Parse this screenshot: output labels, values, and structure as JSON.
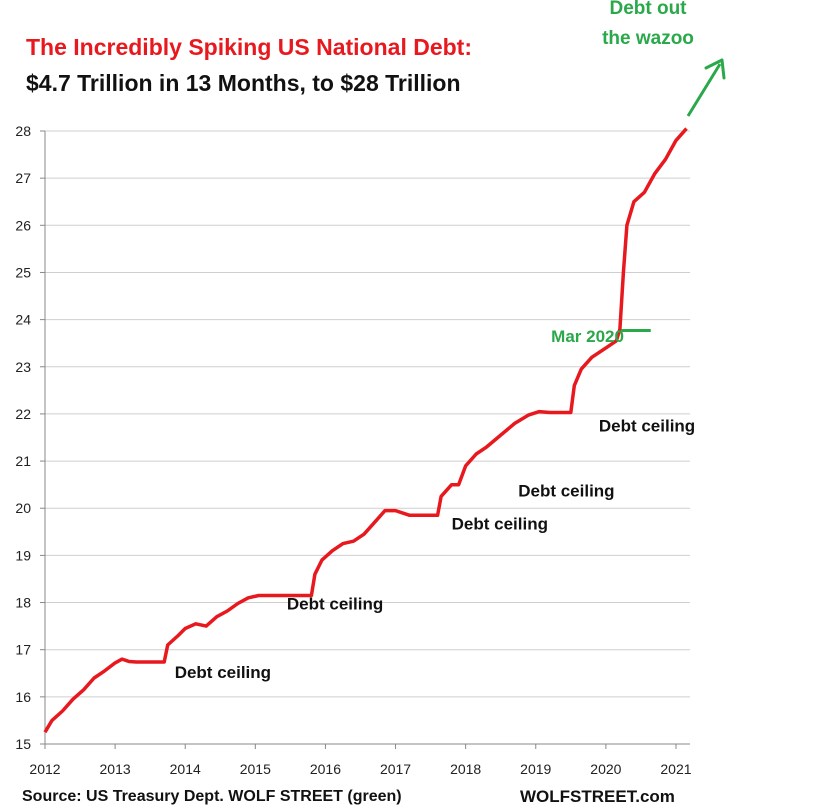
{
  "title_line1": "The Incredibly Spiking US National Debt:",
  "title_line2": "$4.7 Trillion in 13 Months, to $28 Trillion",
  "callout": {
    "line1": "Debt out",
    "line2": "the wazoo",
    "color": "#2aa84a"
  },
  "footer": {
    "source": "Source: US Treasury Dept. WOLF STREET (green)",
    "brand": "WOLFSTREET.com"
  },
  "colors": {
    "line": "#e8191e",
    "annotation": "#2aa84a",
    "grid": "#cfcfcf"
  },
  "chart_data": {
    "type": "line",
    "title": "The Incredibly Spiking US National Debt:",
    "subtitle": "$4.7 Trillion in 13 Months, to $28 Trillion",
    "xlabel": "",
    "ylabel": "",
    "xlim": [
      2012,
      2021.2
    ],
    "ylim": [
      15,
      28
    ],
    "x_ticks": [
      2012,
      2013,
      2014,
      2015,
      2016,
      2017,
      2018,
      2019,
      2020,
      2021
    ],
    "y_ticks": [
      15,
      16,
      17,
      18,
      19,
      20,
      21,
      22,
      23,
      24,
      25,
      26,
      27,
      28
    ],
    "grid": "horizontal",
    "series": [
      {
        "x": [
          2012.0,
          2012.1,
          2012.25,
          2012.4,
          2012.55,
          2012.7,
          2012.85,
          2013.0,
          2013.1,
          2013.2,
          2013.3,
          2013.4,
          2013.7,
          2013.75,
          2013.9,
          2014.0,
          2014.15,
          2014.3,
          2014.45,
          2014.6,
          2014.75,
          2014.9,
          2015.05,
          2015.2,
          2015.8,
          2015.85,
          2015.95,
          2016.1,
          2016.25,
          2016.4,
          2016.55,
          2016.7,
          2016.85,
          2017.0,
          2017.2,
          2017.6,
          2017.65,
          2017.8,
          2017.9,
          2018.0,
          2018.15,
          2018.3,
          2018.5,
          2018.7,
          2018.9,
          2019.05,
          2019.2,
          2019.5,
          2019.55,
          2019.65,
          2019.8,
          2020.0,
          2020.15,
          2020.2,
          2020.25,
          2020.3,
          2020.4,
          2020.55,
          2020.7,
          2020.85,
          2021.0,
          2021.15
        ],
        "values": [
          15.25,
          15.5,
          15.7,
          15.95,
          16.15,
          16.4,
          16.55,
          16.72,
          16.8,
          16.75,
          16.74,
          16.74,
          16.74,
          17.1,
          17.3,
          17.45,
          17.55,
          17.5,
          17.7,
          17.82,
          17.98,
          18.1,
          18.15,
          18.15,
          18.15,
          18.6,
          18.9,
          19.1,
          19.25,
          19.3,
          19.45,
          19.7,
          19.95,
          19.95,
          19.85,
          19.85,
          20.25,
          20.5,
          20.5,
          20.9,
          21.15,
          21.3,
          21.55,
          21.8,
          21.98,
          22.05,
          22.03,
          22.03,
          22.6,
          22.95,
          23.2,
          23.4,
          23.55,
          23.8,
          25.0,
          26.0,
          26.5,
          26.7,
          27.1,
          27.4,
          27.8,
          28.05
        ]
      }
    ],
    "annotations": [
      {
        "text": "Debt ceiling",
        "x": 2013.85,
        "y": 16.4
      },
      {
        "text": "Debt ceiling",
        "x": 2015.45,
        "y": 17.85
      },
      {
        "text": "Debt ceiling",
        "x": 2017.8,
        "y": 19.55
      },
      {
        "text": "Debt ceiling",
        "x": 2018.75,
        "y": 20.25
      },
      {
        "text": "Debt ceiling",
        "x": 2019.9,
        "y": 21.63
      },
      {
        "text": "Mar 2020",
        "x": 2019.22,
        "y": 23.52
      }
    ]
  }
}
